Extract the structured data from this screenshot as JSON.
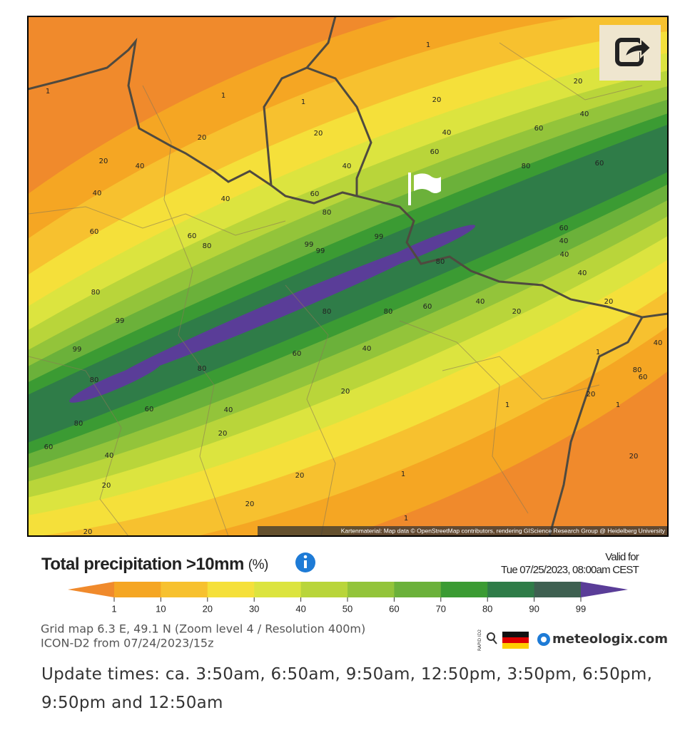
{
  "map": {
    "contour_labels": [
      1,
      1,
      1,
      1,
      20,
      20,
      20,
      20,
      40,
      40,
      20,
      40,
      40,
      60,
      60,
      80,
      60,
      40,
      40,
      60,
      60,
      60,
      80,
      80,
      99,
      99,
      99,
      60,
      40,
      40,
      80,
      40,
      80,
      80,
      80,
      60,
      40,
      20,
      20,
      99,
      99,
      80,
      60,
      40,
      1,
      40,
      80,
      20,
      80,
      60,
      20,
      60,
      40,
      1,
      1,
      80,
      20,
      60,
      40,
      1,
      20,
      20,
      20,
      20,
      1,
      20
    ],
    "attribution": "Kartenmaterial: Map data © OpenStreetMap contributors, rendering GIScience Research Group @ Heidelberg University"
  },
  "legend": {
    "title": "Total precipitation >10mm",
    "unit": "(%)",
    "valid_label": "Valid for",
    "valid_time": "Tue 07/25/2023, 08:00am CEST",
    "ticks": [
      1,
      10,
      20,
      30,
      40,
      50,
      60,
      70,
      80,
      90,
      99
    ],
    "colors": [
      "#f08a2c",
      "#f5a623",
      "#f7c12f",
      "#f5e03a",
      "#dce43f",
      "#b9d53a",
      "#93c43a",
      "#6bb13a",
      "#3b9b33",
      "#2f7c48",
      "#3e6051",
      "#5a3d98"
    ]
  },
  "info": {
    "grid": "Grid map 6.3 E, 49.1 N (Zoom level 4 / Resolution 400m)",
    "model": "ICON-D2 from 07/24/2023/15z",
    "logo_text": "RAPID ID2",
    "brand": "meteologix.com"
  },
  "update_times": "Update times: ca. 3:50am, 6:50am, 9:50am, 12:50pm, 3:50pm, 6:50pm, 9:50pm and 12:50am"
}
